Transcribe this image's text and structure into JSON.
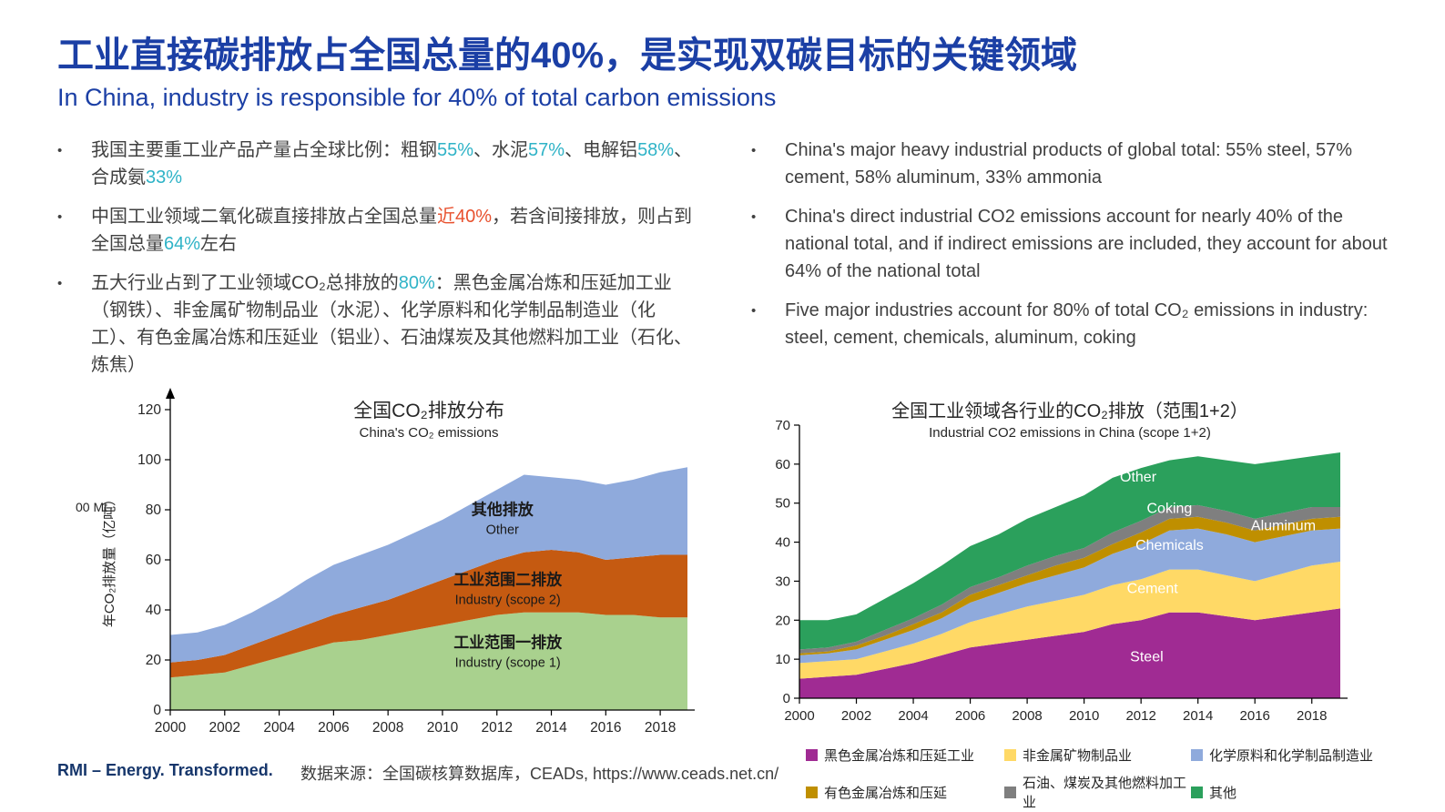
{
  "header": {
    "title_zh": "工业直接碳排放占全国总量的40%，是实现双碳目标的关键领域",
    "subtitle_en": "In China, industry is responsible for 40% of total carbon emissions"
  },
  "bullets_zh": [
    {
      "segments": [
        {
          "t": "我国主要重工业产品产量占全球比例：粗钢",
          "c": "base"
        },
        {
          "t": "55%",
          "c": "teal"
        },
        {
          "t": "、水泥",
          "c": "base"
        },
        {
          "t": "57%",
          "c": "teal"
        },
        {
          "t": "、电解铝",
          "c": "base"
        },
        {
          "t": "58%",
          "c": "teal"
        },
        {
          "t": "、合成氨",
          "c": "base"
        },
        {
          "t": "33%",
          "c": "teal"
        }
      ]
    },
    {
      "segments": [
        {
          "t": "中国工业领域二氧化碳直接排放占全国总量",
          "c": "base"
        },
        {
          "t": "近40%",
          "c": "red"
        },
        {
          "t": "，若含间接排放，则占到全国总量",
          "c": "base"
        },
        {
          "t": "64%",
          "c": "teal"
        },
        {
          "t": "左右",
          "c": "base"
        }
      ]
    },
    {
      "segments": [
        {
          "t": "五大行业占到了工业领域CO₂总排放的",
          "c": "base"
        },
        {
          "t": "80%",
          "c": "teal"
        },
        {
          "t": "：黑色金属冶炼和压延加工业（钢铁）、非金属矿物制品业（水泥）、化学原料和化学制品制造业（化工）、有色金属冶炼和压延业（铝业）、石油煤炭及其他燃料加工业（石化、炼焦）",
          "c": "base"
        }
      ]
    }
  ],
  "bullets_en": [
    "China's major heavy industrial products of global total: 55% steel, 57% cement, 58% aluminum, 33% ammonia",
    "China's direct industrial CO2 emissions account for nearly 40% of the national total, and if indirect emissions are included, they account for about 64% of the national total",
    "Five major industries account for 80% of total CO₂ emissions in industry: steel, cement, chemicals, aluminum, coking"
  ],
  "footer": {
    "logo": "RMI – Energy. Transformed.",
    "source": "数据来源：全国碳核算数据库，CEADs, https://www.ceads.net.cn/"
  },
  "colors": {
    "title_blue": "#1B3FA5",
    "teal": "#2FB3C7",
    "red": "#E8512E",
    "body_text": "#404040"
  },
  "chart_data": [
    {
      "type": "area",
      "stacked": true,
      "title_zh": "全国CO₂排放分布",
      "title_en": "China's CO₂ emissions",
      "ylabel": "年CO₂排放量（亿吨）",
      "ylabel_unit": "00 Mt",
      "xlabel": "",
      "ylim": [
        0,
        120
      ],
      "yticks": [
        0,
        20,
        40,
        60,
        80,
        100,
        120
      ],
      "x": [
        2000,
        2001,
        2002,
        2003,
        2004,
        2005,
        2006,
        2007,
        2008,
        2009,
        2010,
        2011,
        2012,
        2013,
        2014,
        2015,
        2016,
        2017,
        2018,
        2019
      ],
      "xticks": [
        2000,
        2002,
        2004,
        2006,
        2008,
        2010,
        2012,
        2014,
        2016,
        2018
      ],
      "grid": false,
      "series": [
        {
          "name_zh": "工业范围一排放",
          "name_en": "Industry (scope 1)",
          "color": "#A9D18E",
          "values": [
            13,
            14,
            15,
            18,
            21,
            24,
            27,
            28,
            30,
            32,
            34,
            36,
            38,
            39,
            39,
            39,
            38,
            38,
            37,
            37
          ],
          "label": {
            "x": 2012.4,
            "y": 25,
            "color": "#1a1a1a"
          }
        },
        {
          "name_zh": "工业范围二排放",
          "name_en": "Industry (scope 2)",
          "color": "#C55A11",
          "values": [
            6,
            6,
            7,
            8,
            9,
            10,
            11,
            13,
            14,
            16,
            18,
            20,
            22,
            24,
            25,
            24,
            22,
            23,
            25,
            25
          ],
          "label": {
            "x": 2012.4,
            "y": 50,
            "color": "#1a1a1a"
          }
        },
        {
          "name_zh": "其他排放",
          "name_en": "Other",
          "color": "#8FAADC",
          "values": [
            11,
            11,
            12,
            13,
            15,
            18,
            20,
            21,
            22,
            23,
            24,
            26,
            28,
            31,
            29,
            29,
            30,
            31,
            33,
            35
          ],
          "label": {
            "x": 2012.2,
            "y": 78,
            "color": "#1a1a1a"
          }
        }
      ]
    },
    {
      "type": "area",
      "stacked": true,
      "title_zh": "全国工业领域各行业的CO₂排放（范围1+2）",
      "title_en": "Industrial CO2 emissions in China (scope 1+2)",
      "ylim": [
        0,
        70
      ],
      "yticks": [
        0,
        10,
        20,
        30,
        40,
        50,
        60,
        70
      ],
      "x": [
        2000,
        2001,
        2002,
        2003,
        2004,
        2005,
        2006,
        2007,
        2008,
        2009,
        2010,
        2011,
        2012,
        2013,
        2014,
        2015,
        2016,
        2017,
        2018,
        2019
      ],
      "xticks": [
        2000,
        2002,
        2004,
        2006,
        2008,
        2010,
        2012,
        2014,
        2016,
        2018
      ],
      "grid": false,
      "series": [
        {
          "name": "Steel",
          "legend_zh": "黑色金属冶炼和压延工业",
          "color": "#A02B93",
          "values": [
            5,
            5.5,
            6,
            7.5,
            9,
            11,
            13,
            14,
            15,
            16,
            17,
            19,
            20,
            22,
            22,
            21,
            20,
            21,
            22,
            23
          ],
          "label": {
            "x": 2012.2,
            "y": 9.5,
            "color": "#ffffff"
          }
        },
        {
          "name": "Cement",
          "legend_zh": "非金属矿物制品业",
          "color": "#FFD966",
          "values": [
            4,
            4,
            4,
            4.5,
            5,
            5.5,
            6.5,
            7.5,
            8.5,
            9,
            9.5,
            10,
            10.5,
            11,
            11,
            10.5,
            10,
            11,
            12,
            12
          ],
          "label": {
            "x": 2012.4,
            "y": 27,
            "color": "#ffffff"
          }
        },
        {
          "name": "Chemicals",
          "legend_zh": "化学原料和化学制品制造业",
          "color": "#8FAADC",
          "values": [
            2,
            2,
            2.5,
            3,
            3.5,
            4,
            5,
            5.5,
            6,
            6.5,
            7,
            8,
            9,
            10,
            10.5,
            10.5,
            10,
            9.5,
            9,
            8.5
          ],
          "label": {
            "x": 2013,
            "y": 38,
            "color": "#ffffff"
          }
        },
        {
          "name": "Aluminum",
          "legend_zh": "有色金属冶炼和压延",
          "color": "#BF8F00",
          "values": [
            0.5,
            0.5,
            1,
            1,
            1.5,
            1.5,
            2,
            2,
            2,
            2.5,
            2.5,
            2.5,
            3,
            3,
            3,
            3,
            3,
            3,
            3,
            3
          ],
          "label": {
            "x": 2017,
            "y": 43,
            "color": "#ffffff"
          }
        },
        {
          "name": "Coking",
          "legend_zh": "石油、煤炭及其他燃料加工业",
          "color": "#7F7F7F",
          "values": [
            1,
            1,
            1,
            1.5,
            1.5,
            2,
            2,
            2,
            2.5,
            2.5,
            2.5,
            3,
            3,
            3,
            3,
            3,
            3,
            3,
            3,
            2.5
          ],
          "label": {
            "x": 2013,
            "y": 47.5,
            "color": "#ffffff"
          }
        },
        {
          "name": "Other",
          "legend_zh": "其他",
          "color": "#2BA05C",
          "values": [
            7.5,
            7,
            7,
            8,
            9,
            10,
            10.5,
            11,
            12,
            12.5,
            13.5,
            14,
            13.5,
            12,
            12.5,
            13,
            14,
            13.5,
            13,
            14
          ],
          "label": {
            "x": 2011.9,
            "y": 55.5,
            "color": "#ffffff"
          }
        }
      ]
    }
  ]
}
